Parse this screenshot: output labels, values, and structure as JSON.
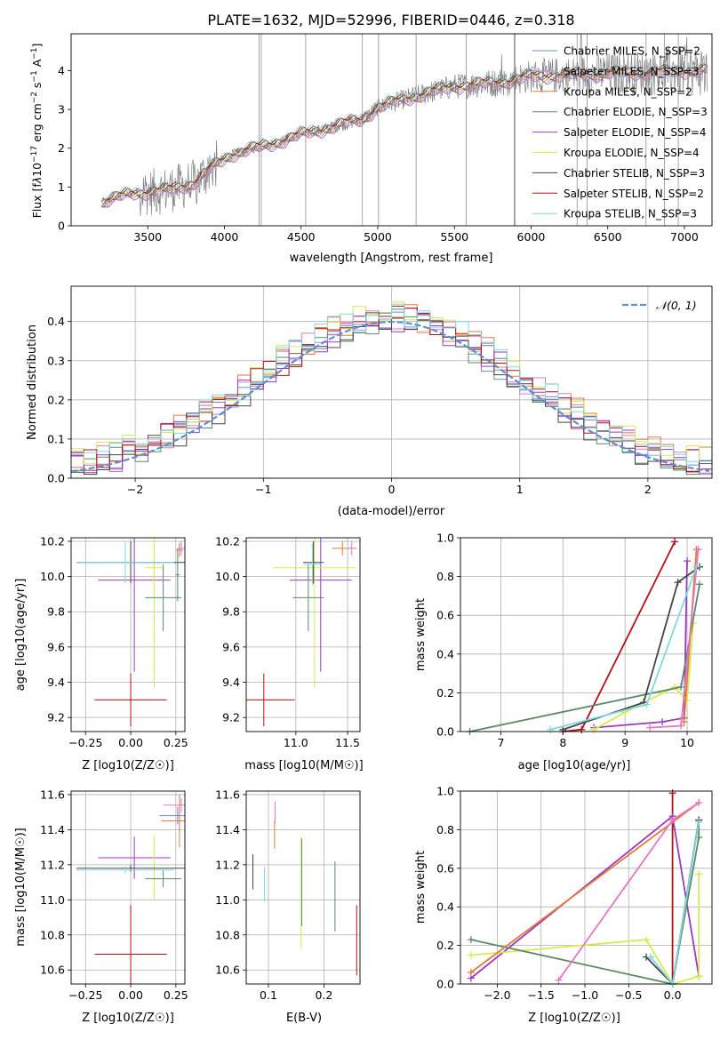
{
  "figure": {
    "title": "PLATE=1632, MJD=52996, FIBERID=0446, z=0.318",
    "colors": {
      "c1": "#6f87d6",
      "c2": "#e377c2",
      "c3": "#e07b39",
      "c4": "#5b8a68",
      "c5": "#9b3ac0",
      "c6": "#d7ea4f",
      "c7": "#444444",
      "c8": "#b01116",
      "c9": "#7fd8e0",
      "obs": "#808080",
      "gauss": "#5b8fd6",
      "grid": "#b0b0b0"
    }
  },
  "chart_data": [
    {
      "id": "spectrum",
      "type": "line",
      "xlabel": "wavelength [Angstrom, rest frame]",
      "ylabel": "Flux [f_λ 10^-17 erg cm^-2 s^-1 A^-1]",
      "xlim": [
        3000,
        7180
      ],
      "ylim": [
        0,
        4.95
      ],
      "xticks": [
        3500,
        4000,
        4500,
        5000,
        5500,
        6000,
        6500,
        7000
      ],
      "yticks": [
        0,
        1,
        2,
        3,
        4
      ],
      "grid": false,
      "legend_position": "top-right",
      "observed_continuum_x": [
        3200,
        3400,
        3600,
        3800,
        3950,
        4050,
        4300,
        4500,
        4700,
        4900,
        5000,
        5200,
        5500,
        5800,
        6000,
        6300,
        6600,
        6800,
        7000,
        7150
      ],
      "observed_continuum_y": [
        0.6,
        0.85,
        0.9,
        1.1,
        1.6,
        1.85,
        2.1,
        2.35,
        2.55,
        2.75,
        3.05,
        3.3,
        3.6,
        3.7,
        3.85,
        3.9,
        3.95,
        3.95,
        4.0,
        4.0
      ],
      "series": [
        {
          "name": "Chabrier MILES, N_SSP=2",
          "color_key": "c1"
        },
        {
          "name": "Salpeter MILES, N_SSP=3",
          "color_key": "c2"
        },
        {
          "name": "Kroupa MILES, N_SSP=2",
          "color_key": "c3"
        },
        {
          "name": "Chabrier ELODIE, N_SSP=3",
          "color_key": "c4"
        },
        {
          "name": "Salpeter ELODIE, N_SSP=4",
          "color_key": "c5"
        },
        {
          "name": "Kroupa ELODIE, N_SSP=4",
          "color_key": "c6"
        },
        {
          "name": "Chabrier STELIB, N_SSP=3",
          "color_key": "c7"
        },
        {
          "name": "Salpeter STELIB, N_SSP=2",
          "color_key": "c8"
        },
        {
          "name": "Kroupa STELIB, N_SSP=3",
          "color_key": "c9"
        }
      ]
    },
    {
      "id": "residuals",
      "type": "line",
      "xlabel": "(data-model)/error",
      "ylabel": "Normed distribution",
      "xlim": [
        -2.5,
        2.5
      ],
      "ylim": [
        0,
        0.49
      ],
      "xticks": [
        -2,
        -1,
        0,
        1,
        2
      ],
      "yticks": [
        0.0,
        0.1,
        0.2,
        0.3,
        0.4
      ],
      "grid": true,
      "legend_position": "top-right",
      "legend": "N(0,1)",
      "bin_width": 0.1,
      "histogram_series_colors": [
        "c1",
        "c2",
        "c3",
        "c4",
        "c5",
        "c6",
        "c7",
        "c8",
        "c9"
      ]
    },
    {
      "id": "age_vs_Z",
      "type": "scatter",
      "xlabel": "Z [log10(Z/Z☉)]",
      "ylabel": "age [log10(age/yr)]",
      "xlim": [
        -0.33,
        0.3
      ],
      "ylim": [
        9.12,
        10.22
      ],
      "xticks": [
        -0.25,
        0.0,
        0.25
      ],
      "yticks": [
        9.2,
        9.4,
        9.6,
        9.8,
        10.0,
        10.2
      ],
      "grid": true,
      "points": [
        {
          "x": 0.0,
          "y": 9.3,
          "xerr": 0.2,
          "yerr": 0.15,
          "color_key": "c8"
        },
        {
          "x": 0.02,
          "y": 9.98,
          "xerr": 0.2,
          "yerr": 0.52,
          "color_key": "c5"
        },
        {
          "x": 0.13,
          "y": 10.05,
          "xerr": 0.05,
          "yerr": 0.68,
          "color_key": "c6"
        },
        {
          "x": 0.18,
          "y": 9.88,
          "xerr": 0.1,
          "yerr": 0.19,
          "color_key": "c4"
        },
        {
          "x": 0.27,
          "y": 10.15,
          "xerr": 0.02,
          "yerr": 0.04,
          "color_key": "c3"
        },
        {
          "x": 0.28,
          "y": 10.16,
          "xerr": 0.02,
          "yerr": 0.04,
          "color_key": "c2"
        },
        {
          "x": 0.0,
          "y": 10.08,
          "xerr": 0.3,
          "yerr": 0.12,
          "color_key": "c7"
        },
        {
          "x": -0.03,
          "y": 10.08,
          "xerr": 0.27,
          "yerr": 0.12,
          "color_key": "c9"
        },
        {
          "x": 0.26,
          "y": 10.01,
          "xerr": 0.01,
          "yerr": 0.15,
          "color_key": "c4"
        }
      ]
    },
    {
      "id": "age_vs_mass",
      "type": "scatter",
      "xlabel": "mass [log10(M/M☉)]",
      "ylabel": "",
      "xlim": [
        10.52,
        11.62
      ],
      "ylim": [
        9.12,
        10.22
      ],
      "xticks": [
        11.0,
        11.5
      ],
      "yticks": [
        9.2,
        9.4,
        9.6,
        9.8,
        10.0,
        10.2
      ],
      "grid": true,
      "points": [
        {
          "x": 10.69,
          "y": 9.3,
          "xerr": 0.3,
          "yerr": 0.15,
          "color_key": "c8"
        },
        {
          "x": 11.24,
          "y": 9.98,
          "xerr": 0.3,
          "yerr": 0.52,
          "color_key": "c5"
        },
        {
          "x": 11.18,
          "y": 10.05,
          "xerr": 0.4,
          "yerr": 0.68,
          "color_key": "c6"
        },
        {
          "x": 11.12,
          "y": 9.88,
          "xerr": 0.15,
          "yerr": 0.19,
          "color_key": "c4"
        },
        {
          "x": 11.45,
          "y": 10.16,
          "xerr": 0.1,
          "yerr": 0.04,
          "color_key": "c3"
        },
        {
          "x": 11.54,
          "y": 10.16,
          "xerr": 0.05,
          "yerr": 0.04,
          "color_key": "c2"
        },
        {
          "x": 11.17,
          "y": 10.08,
          "xerr": 0.1,
          "yerr": 0.12,
          "color_key": "c7"
        },
        {
          "x": 11.16,
          "y": 10.07,
          "xerr": 0.08,
          "yerr": 0.12,
          "color_key": "c9"
        }
      ]
    },
    {
      "id": "weight_vs_age",
      "type": "line",
      "xlabel": "age [log10(age/yr)]",
      "ylabel": "mass weight",
      "xlim": [
        6.35,
        10.4
      ],
      "ylim": [
        0,
        1.0
      ],
      "xticks": [
        7,
        8,
        9,
        10
      ],
      "yticks": [
        0.0,
        0.2,
        0.4,
        0.6,
        0.8,
        1.0
      ],
      "grid": true,
      "series": [
        {
          "color_key": "c8",
          "x": [
            8.0,
            8.3,
            9.8
          ],
          "y": [
            0.0,
            0.01,
            0.98
          ]
        },
        {
          "color_key": "c5",
          "x": [
            8.5,
            9.6,
            9.95,
            10.0
          ],
          "y": [
            0.02,
            0.05,
            0.07,
            0.88
          ]
        },
        {
          "color_key": "c6",
          "x": [
            8.5,
            9.0,
            9.8,
            10.0,
            10.1
          ],
          "y": [
            0.01,
            0.1,
            0.23,
            0.16,
            0.56
          ]
        },
        {
          "color_key": "c4",
          "x": [
            6.5,
            9.9,
            10.2
          ],
          "y": [
            0.0,
            0.23,
            0.76
          ]
        },
        {
          "color_key": "c3",
          "x": [
            9.95,
            10.15
          ],
          "y": [
            0.05,
            0.94
          ]
        },
        {
          "color_key": "c2",
          "x": [
            9.4,
            9.9,
            10.18
          ],
          "y": [
            0.02,
            0.03,
            0.94
          ]
        },
        {
          "color_key": "c7",
          "x": [
            8.0,
            9.3,
            9.85,
            10.2
          ],
          "y": [
            0.01,
            0.15,
            0.77,
            0.85
          ]
        },
        {
          "color_key": "c9",
          "x": [
            7.8,
            9.35,
            10.15
          ],
          "y": [
            0.01,
            0.14,
            0.85
          ]
        }
      ]
    },
    {
      "id": "mass_vs_Z",
      "type": "scatter",
      "xlabel": "Z [log10(Z/Z☉)]",
      "ylabel": "mass [log10(M/M☉)]",
      "xlim": [
        -0.33,
        0.3
      ],
      "ylim": [
        10.52,
        11.62
      ],
      "xticks": [
        -0.25,
        0.0,
        0.25
      ],
      "yticks": [
        10.6,
        10.8,
        11.0,
        11.2,
        11.4,
        11.6
      ],
      "grid": true,
      "points": [
        {
          "x": 0.0,
          "y": 10.69,
          "xerr": 0.2,
          "yerr": 0.28,
          "color_key": "c8"
        },
        {
          "x": 0.02,
          "y": 11.24,
          "xerr": 0.2,
          "yerr": 0.12,
          "color_key": "c5"
        },
        {
          "x": 0.13,
          "y": 11.18,
          "xerr": 0.05,
          "yerr": 0.18,
          "color_key": "c6"
        },
        {
          "x": 0.18,
          "y": 11.12,
          "xerr": 0.1,
          "yerr": 0.05,
          "color_key": "c4"
        },
        {
          "x": 0.27,
          "y": 11.45,
          "xerr": 0.1,
          "yerr": 0.15,
          "color_key": "c3"
        },
        {
          "x": 0.28,
          "y": 11.54,
          "xerr": 0.1,
          "yerr": 0.04,
          "color_key": "c2"
        },
        {
          "x": 0.0,
          "y": 11.18,
          "xerr": 0.3,
          "yerr": 0.02,
          "color_key": "c7"
        },
        {
          "x": -0.03,
          "y": 11.17,
          "xerr": 0.27,
          "yerr": 0.02,
          "color_key": "c9"
        },
        {
          "x": 0.26,
          "y": 11.48,
          "xerr": 0.1,
          "yerr": 0.05,
          "color_key": "c1"
        }
      ]
    },
    {
      "id": "mass_vs_ebv",
      "type": "scatter",
      "xlabel": "E(B-V)",
      "ylabel": "",
      "xlim": [
        0.06,
        0.265
      ],
      "ylim": [
        10.52,
        11.62
      ],
      "xticks": [
        0.1,
        0.2
      ],
      "yticks": [
        10.6,
        10.8,
        11.0,
        11.2,
        11.4,
        11.6
      ],
      "grid": true,
      "points": [
        {
          "x": 0.072,
          "y": 11.16,
          "xerr": 0,
          "yerr": 0.1,
          "color_key": "c7"
        },
        {
          "x": 0.093,
          "y": 11.09,
          "xerr": 0,
          "yerr": 0.1,
          "color_key": "c9"
        },
        {
          "x": 0.111,
          "y": 11.37,
          "xerr": 0,
          "yerr": 0.08,
          "color_key": "c3"
        },
        {
          "x": 0.112,
          "y": 11.5,
          "xerr": 0,
          "yerr": 0.06,
          "color_key": "c2"
        },
        {
          "x": 0.159,
          "y": 11.04,
          "xerr": 0,
          "yerr": 0.32,
          "color_key": "c6"
        },
        {
          "x": 0.16,
          "y": 11.1,
          "xerr": 0,
          "yerr": 0.25,
          "color_key": "c4"
        },
        {
          "x": 0.22,
          "y": 11.02,
          "xerr": 0,
          "yerr": 0.2,
          "color_key": "c4"
        },
        {
          "x": 0.259,
          "y": 10.77,
          "xerr": 0,
          "yerr": 0.2,
          "color_key": "c8"
        }
      ]
    },
    {
      "id": "weight_vs_Z",
      "type": "line",
      "xlabel": "Z [log10(Z/Z☉)]",
      "ylabel": "mass weight",
      "xlim": [
        -2.42,
        0.45
      ],
      "ylim": [
        0,
        1.0
      ],
      "xticks": [
        -2.0,
        -1.5,
        -1.0,
        -0.5,
        0.0
      ],
      "yticks": [
        0.0,
        0.2,
        0.4,
        0.6,
        0.8,
        1.0
      ],
      "grid": true,
      "series": [
        {
          "color_key": "c8",
          "x": [
            0.0,
            0.0
          ],
          "y": [
            0.0,
            0.99
          ]
        },
        {
          "color_key": "c5",
          "x": [
            -2.3,
            0.0,
            0.3
          ],
          "y": [
            0.03,
            0.87,
            0.04
          ]
        },
        {
          "color_key": "c6",
          "x": [
            -2.3,
            -0.3,
            0.0,
            0.3,
            0.3
          ],
          "y": [
            0.15,
            0.23,
            0.0,
            0.04,
            0.57
          ]
        },
        {
          "color_key": "c4",
          "x": [
            -2.3,
            0.0,
            0.3,
            0.3
          ],
          "y": [
            0.23,
            0.0,
            0.76,
            0.85
          ]
        },
        {
          "color_key": "c3",
          "x": [
            -2.3,
            0.3
          ],
          "y": [
            0.06,
            0.94
          ]
        },
        {
          "color_key": "c2",
          "x": [
            -1.3,
            0.0,
            0.3
          ],
          "y": [
            0.02,
            0.85,
            0.94
          ]
        },
        {
          "color_key": "c7",
          "x": [
            -0.3,
            0.0,
            0.3
          ],
          "y": [
            0.14,
            0.0,
            0.85
          ]
        },
        {
          "color_key": "c9",
          "x": [
            -0.25,
            0.0,
            0.3
          ],
          "y": [
            0.14,
            0.0,
            0.84
          ]
        }
      ]
    }
  ]
}
